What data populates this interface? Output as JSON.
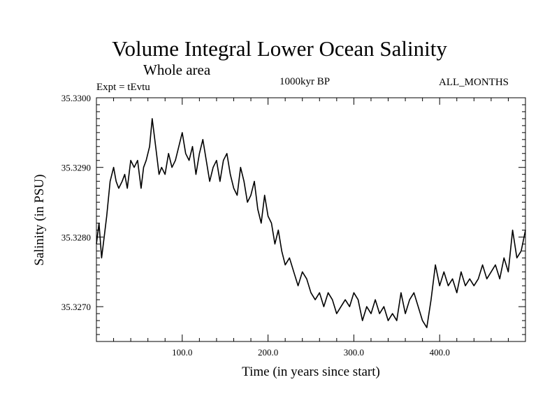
{
  "chart_data": {
    "type": "line",
    "title": "Volume Integral Lower Ocean Salinity",
    "subtitle": "Whole area",
    "experiment_label": "Expt = tEvtu",
    "period_label": "1000kyr BP",
    "months_label": "ALL_MONTHS",
    "xlabel": "Time (in years since start)",
    "ylabel": "Salinity (in PSU)",
    "xlim": [
      0,
      500
    ],
    "ylim": [
      35.3265,
      35.33
    ],
    "x_ticks": [
      100,
      200,
      300,
      400
    ],
    "x_tick_labels": [
      "100.0",
      "200.0",
      "300.0",
      "400.0"
    ],
    "y_ticks": [
      35.327,
      35.328,
      35.329,
      35.33
    ],
    "y_tick_labels": [
      "35.3270",
      "35.3280",
      "35.3290",
      "35.3300"
    ],
    "series": [
      {
        "name": "Salinity",
        "color": "#000000",
        "x": [
          0,
          3,
          6,
          9,
          12,
          16,
          20,
          23,
          26,
          30,
          33,
          36,
          40,
          44,
          48,
          52,
          55,
          58,
          62,
          65,
          67,
          70,
          73,
          76,
          80,
          84,
          88,
          92,
          96,
          100,
          104,
          108,
          112,
          116,
          120,
          124,
          128,
          132,
          136,
          140,
          144,
          148,
          152,
          156,
          160,
          164,
          168,
          172,
          176,
          180,
          184,
          188,
          192,
          196,
          200,
          204,
          208,
          212,
          216,
          220,
          225,
          230,
          235,
          240,
          245,
          250,
          255,
          260,
          265,
          270,
          275,
          280,
          285,
          290,
          295,
          300,
          305,
          310,
          315,
          320,
          325,
          330,
          335,
          340,
          345,
          350,
          355,
          360,
          365,
          370,
          375,
          380,
          385,
          390,
          395,
          400,
          405,
          410,
          415,
          420,
          425,
          430,
          435,
          440,
          445,
          450,
          455,
          460,
          465,
          470,
          475,
          480,
          485,
          490,
          495,
          500
        ],
        "y": [
          35.3279,
          35.3282,
          35.3277,
          35.328,
          35.3283,
          35.3288,
          35.329,
          35.3288,
          35.3287,
          35.3288,
          35.3289,
          35.3287,
          35.3291,
          35.329,
          35.3291,
          35.3287,
          35.329,
          35.3291,
          35.3293,
          35.3297,
          35.3295,
          35.3292,
          35.3289,
          35.329,
          35.3289,
          35.3292,
          35.329,
          35.3291,
          35.3293,
          35.3295,
          35.3292,
          35.3291,
          35.3293,
          35.3289,
          35.3292,
          35.3294,
          35.3291,
          35.3288,
          35.329,
          35.3291,
          35.3288,
          35.3291,
          35.3292,
          35.3289,
          35.3287,
          35.3286,
          35.329,
          35.3288,
          35.3285,
          35.3286,
          35.3288,
          35.3284,
          35.3282,
          35.3286,
          35.3283,
          35.3282,
          35.3279,
          35.3281,
          35.3278,
          35.3276,
          35.3277,
          35.3275,
          35.3273,
          35.3275,
          35.3274,
          35.3272,
          35.3271,
          35.3272,
          35.327,
          35.3272,
          35.3271,
          35.3269,
          35.327,
          35.3271,
          35.327,
          35.3272,
          35.3271,
          35.3268,
          35.327,
          35.3269,
          35.3271,
          35.3269,
          35.327,
          35.3268,
          35.3269,
          35.3268,
          35.3272,
          35.3269,
          35.3271,
          35.3272,
          35.327,
          35.3268,
          35.3267,
          35.3271,
          35.3276,
          35.3273,
          35.3275,
          35.3273,
          35.3274,
          35.3272,
          35.3275,
          35.3273,
          35.3274,
          35.3273,
          35.3274,
          35.3276,
          35.3274,
          35.3275,
          35.3276,
          35.3274,
          35.3277,
          35.3275,
          35.3281,
          35.3277,
          35.3278,
          35.3281
        ]
      }
    ]
  }
}
